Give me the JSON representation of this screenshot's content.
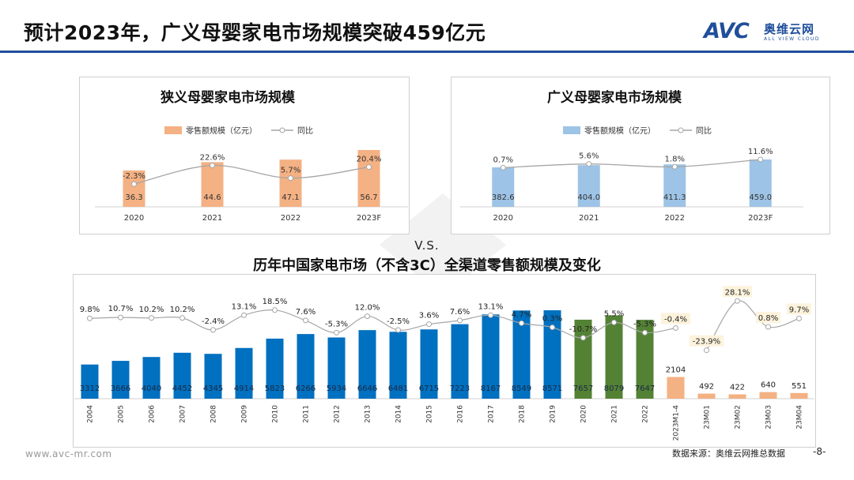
{
  "header": {
    "title": "预计2023年，广义母婴家电市场规模突破459亿元"
  },
  "logo": {
    "mark": "AVC",
    "name_cn": "奥维云网",
    "name_en": "ALL VIEW CLOUD"
  },
  "vs_label": "V.S.",
  "footer": {
    "url": "www.avc-mr.com",
    "source": "数据来源：奥维云网推总数据",
    "page": "-8-"
  },
  "colors": {
    "narrow_bar": "#f4b183",
    "broad_bar": "#9dc3e6",
    "hist_blue": "#0070c0",
    "hist_green": "#548235",
    "hist_orange": "#f4b183",
    "yoy_line": "#a6a6a6",
    "yoy_label_box": "#fdf3dc",
    "brand": "#1f4e9b"
  },
  "chart_data": [
    {
      "id": "narrow",
      "type": "bar",
      "title": "狭义母婴家电市场规模",
      "categories": [
        "2020",
        "2021",
        "2022",
        "2023F"
      ],
      "series": [
        {
          "name": "零售额规模（亿元）",
          "kind": "bar",
          "values": [
            36.3,
            44.6,
            47.1,
            56.7
          ],
          "labels": [
            "36.3",
            "44.6",
            "47.1",
            "56.7"
          ]
        },
        {
          "name": "同比",
          "kind": "line",
          "values": [
            -2.3,
            22.6,
            5.7,
            20.4
          ],
          "labels": [
            "-2.3%",
            "22.6%",
            "5.7%",
            "20.4%"
          ]
        }
      ],
      "legend_position": "top"
    },
    {
      "id": "broad",
      "type": "bar",
      "title": "广义母婴家电市场规模",
      "categories": [
        "2020",
        "2021",
        "2022",
        "2023F"
      ],
      "series": [
        {
          "name": "零售额规模（亿元）",
          "kind": "bar",
          "values": [
            382.6,
            404.0,
            411.3,
            459.0
          ],
          "labels": [
            "382.6",
            "404.0",
            "411.3",
            "459.0"
          ]
        },
        {
          "name": "同比",
          "kind": "line",
          "values": [
            0.7,
            5.6,
            1.8,
            11.6
          ],
          "labels": [
            "0.7%",
            "5.6%",
            "1.8%",
            "11.6%"
          ]
        }
      ],
      "legend_position": "top"
    },
    {
      "id": "history",
      "type": "bar",
      "title": "历年中国家电市场（不含3C）全渠道零售额规模及变化",
      "categories": [
        "2004",
        "2005",
        "2006",
        "2007",
        "2008",
        "2009",
        "2010",
        "2011",
        "2012",
        "2013",
        "2014",
        "2015",
        "2016",
        "2017",
        "2018",
        "2019",
        "2020",
        "2021",
        "2022",
        "2023M1-4",
        "23M01",
        "23M02",
        "23M03",
        "23M04"
      ],
      "bar_groups": [
        "blue",
        "blue",
        "blue",
        "blue",
        "blue",
        "blue",
        "blue",
        "blue",
        "blue",
        "blue",
        "blue",
        "blue",
        "blue",
        "blue",
        "blue",
        "blue",
        "green",
        "green",
        "green",
        "orange",
        "orange",
        "orange",
        "orange",
        "orange"
      ],
      "series": [
        {
          "name": "零售额规模",
          "kind": "bar",
          "values": [
            3312,
            3666,
            4040,
            4452,
            4345,
            4914,
            5823,
            6266,
            5934,
            6646,
            6481,
            6715,
            7223,
            8167,
            8549,
            8571,
            7657,
            8079,
            7647,
            2104,
            492,
            422,
            640,
            551
          ],
          "labels": [
            "3312",
            "3666",
            "4040",
            "4452",
            "4345",
            "4914",
            "5823",
            "6266",
            "5934",
            "6646",
            "6481",
            "6715",
            "7223",
            "8167",
            "8549",
            "8571",
            "7657",
            "8079",
            "7647",
            "2104",
            "492",
            "422",
            "640",
            "551"
          ]
        },
        {
          "name": "同比",
          "kind": "line",
          "values": [
            9.8,
            10.7,
            10.2,
            10.2,
            -2.4,
            13.1,
            18.5,
            7.6,
            -5.3,
            12.0,
            -2.5,
            3.6,
            7.6,
            13.1,
            4.7,
            0.3,
            -10.7,
            5.5,
            -5.3,
            -0.4,
            -23.9,
            28.1,
            0.8,
            9.7
          ],
          "labels": [
            "9.8%",
            "10.7%",
            "10.2%",
            "10.2%",
            "-2.4%",
            "13.1%",
            "18.5%",
            "7.6%",
            "-5.3%",
            "12.0%",
            "-2.5%",
            "3.6%",
            "7.6%",
            "13.1%",
            "4.7%",
            "0.3%",
            "-10.7%",
            "5.5%",
            "-5.3%",
            "-0.4%",
            "-23.9%",
            "28.1%",
            "0.8%",
            "9.7%"
          ]
        }
      ]
    }
  ]
}
